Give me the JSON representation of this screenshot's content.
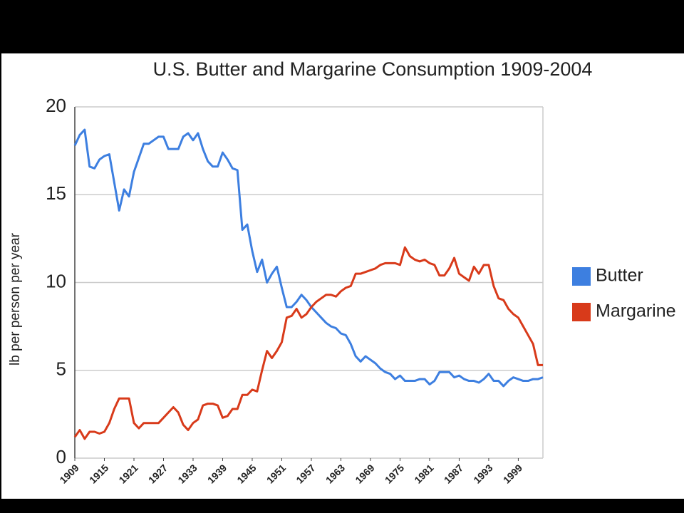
{
  "chart_data": {
    "type": "line",
    "title": "U.S. Butter and Margarine Consumption 1909-2004",
    "ylabel": "lb per person per year",
    "x": [
      1909,
      1910,
      1911,
      1912,
      1913,
      1914,
      1915,
      1916,
      1917,
      1918,
      1919,
      1920,
      1921,
      1922,
      1923,
      1924,
      1925,
      1926,
      1927,
      1928,
      1929,
      1930,
      1931,
      1932,
      1933,
      1934,
      1935,
      1936,
      1937,
      1938,
      1939,
      1940,
      1941,
      1942,
      1943,
      1944,
      1945,
      1946,
      1947,
      1948,
      1949,
      1950,
      1951,
      1952,
      1953,
      1954,
      1955,
      1956,
      1957,
      1958,
      1959,
      1960,
      1961,
      1962,
      1963,
      1964,
      1965,
      1966,
      1967,
      1968,
      1969,
      1970,
      1971,
      1972,
      1973,
      1974,
      1975,
      1976,
      1977,
      1978,
      1979,
      1980,
      1981,
      1982,
      1983,
      1984,
      1985,
      1986,
      1987,
      1988,
      1989,
      1990,
      1991,
      1992,
      1993,
      1994,
      1995,
      1996,
      1997,
      1998,
      1999,
      2000,
      2001,
      2002,
      2003,
      2004
    ],
    "series": [
      {
        "name": "Butter",
        "color": "#3d7fe0",
        "values": [
          17.8,
          18.4,
          18.7,
          16.6,
          16.5,
          17.0,
          17.2,
          17.3,
          15.7,
          14.1,
          15.3,
          14.9,
          16.3,
          17.1,
          17.9,
          17.9,
          18.1,
          18.3,
          18.3,
          17.6,
          17.6,
          17.6,
          18.3,
          18.5,
          18.1,
          18.5,
          17.6,
          16.9,
          16.6,
          16.6,
          17.4,
          17.0,
          16.5,
          16.4,
          13.0,
          13.3,
          11.8,
          10.6,
          11.3,
          10.0,
          10.5,
          10.9,
          9.7,
          8.6,
          8.6,
          8.9,
          9.3,
          9.0,
          8.6,
          8.3,
          8.0,
          7.7,
          7.5,
          7.4,
          7.1,
          7.0,
          6.5,
          5.8,
          5.5,
          5.8,
          5.6,
          5.4,
          5.1,
          4.9,
          4.8,
          4.5,
          4.7,
          4.4,
          4.4,
          4.4,
          4.5,
          4.5,
          4.2,
          4.4,
          4.9,
          4.9,
          4.9,
          4.6,
          4.7,
          4.5,
          4.4,
          4.4,
          4.3,
          4.5,
          4.8,
          4.4,
          4.4,
          4.1,
          4.4,
          4.6,
          4.5,
          4.4,
          4.4,
          4.5,
          4.5,
          4.6
        ]
      },
      {
        "name": "Margarine",
        "color": "#d83a1a",
        "values": [
          1.2,
          1.6,
          1.1,
          1.5,
          1.5,
          1.4,
          1.5,
          2.0,
          2.8,
          3.4,
          3.4,
          3.4,
          2.0,
          1.7,
          2.0,
          2.0,
          2.0,
          2.0,
          2.3,
          2.6,
          2.9,
          2.6,
          1.9,
          1.6,
          2.0,
          2.2,
          3.0,
          3.1,
          3.1,
          3.0,
          2.3,
          2.4,
          2.8,
          2.8,
          3.6,
          3.6,
          3.9,
          3.8,
          5.0,
          6.1,
          5.7,
          6.1,
          6.6,
          8.0,
          8.1,
          8.5,
          8.0,
          8.2,
          8.6,
          8.9,
          9.1,
          9.3,
          9.3,
          9.2,
          9.5,
          9.7,
          9.8,
          10.5,
          10.5,
          10.6,
          10.7,
          10.8,
          11.0,
          11.1,
          11.1,
          11.1,
          11.0,
          12.0,
          11.5,
          11.3,
          11.2,
          11.3,
          11.1,
          11.0,
          10.4,
          10.4,
          10.8,
          11.4,
          10.5,
          10.3,
          10.1,
          10.9,
          10.5,
          11.0,
          11.0,
          9.8,
          9.1,
          9.0,
          8.5,
          8.2,
          8.0,
          7.5,
          7.0,
          6.5,
          5.3,
          5.3
        ]
      }
    ],
    "xlim": [
      1909,
      2004
    ],
    "xticks": [
      1909,
      1915,
      1921,
      1927,
      1933,
      1939,
      1945,
      1951,
      1957,
      1963,
      1969,
      1975,
      1981,
      1987,
      1993,
      1999
    ],
    "ylim": [
      0,
      20
    ],
    "yticks": [
      0,
      5,
      10,
      15,
      20
    ],
    "grid": true,
    "legend": "right"
  }
}
